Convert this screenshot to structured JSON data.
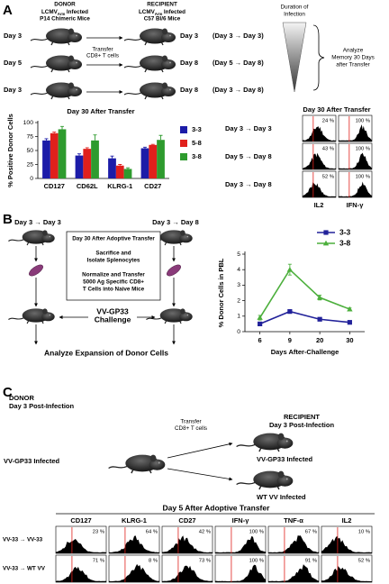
{
  "panel_a": {
    "label": "A",
    "donor": {
      "title": "DONOR",
      "infection": {
        "virus": "LCMV",
        "strain": "Arm",
        "suffix": "Infected"
      },
      "mice": "P14 Chimeric Mice"
    },
    "recipient": {
      "title": "RECIPIENT",
      "infection": {
        "virus": "LCMV",
        "strain": "Arm",
        "suffix": "Infected"
      },
      "mice": "C57 Bl/6 Mice"
    },
    "transfer": [
      "Transfer",
      "CD8+ T cells"
    ],
    "rows": [
      {
        "donor": "Day 3",
        "recipient": "Day 3",
        "course": "(Day 3 → Day 3)"
      },
      {
        "donor": "Day 5",
        "recipient": "Day 8",
        "course": "(Day 5 → Day 8)"
      },
      {
        "donor": "Day 3",
        "recipient": "Day 8",
        "course": "(Day 3 → Day 8)"
      }
    ],
    "duration": [
      "Duration of",
      "Infection"
    ],
    "analysis": [
      "Analyze",
      "Memory 30 Days",
      "after Transfer"
    ],
    "flow": {
      "title": "Day 30 After Transfer",
      "columns": [
        "IL2",
        "IFN-γ"
      ],
      "rows": [
        {
          "label": "Day 3 → Day 3",
          "percents": [
            "24 %",
            "100 %"
          ]
        },
        {
          "label": "Day 5 → Day 8",
          "percents": [
            "43 %",
            "100 %"
          ]
        },
        {
          "label": "Day 3 → Day 8",
          "percents": [
            "52 %",
            "100 %"
          ]
        }
      ]
    }
  },
  "panel_b": {
    "label": "B",
    "groups": [
      "Day 3 → Day 3",
      "Day 3 → Day 8"
    ],
    "box": {
      "title": "Day 30 After Adoptive Transfer",
      "harvest": [
        "Sacrifice and",
        "Isolate Splenocytes"
      ],
      "transfer": [
        "Normalize and Transfer",
        "5000 Ag Specific CD8+",
        "T Cells into Naive Mice"
      ]
    },
    "challenge": [
      "VV-GP33",
      "Challenge"
    ],
    "readout": "Analyze Expansion of Donor Cells"
  },
  "panel_c": {
    "label": "C",
    "donor": {
      "title": "DONOR",
      "timing": "Day 3 Post-Infection",
      "infection": "VV-GP33 Infected"
    },
    "transfer": [
      "Transfer",
      "CD8+ T cells"
    ],
    "recipient": {
      "title": "RECIPIENT",
      "timing": "Day 3 Post-Infection",
      "groups": [
        "VV-GP33 Infected",
        "WT VV Infected"
      ]
    },
    "flow": {
      "title": "Day 5 After Adoptive Transfer",
      "columns": [
        "CD127",
        "KLRG-1",
        "CD27",
        "IFN-γ",
        "TNF-α",
        "IL2"
      ],
      "rows": [
        {
          "label": "VV-33 → VV-33",
          "percents": [
            "23 %",
            "64 %",
            "42 %",
            "100 %",
            "67 %",
            "10 %"
          ]
        },
        {
          "label": "VV-33 → WT VV",
          "percents": [
            "71 %",
            "8 %",
            "73 %",
            "100 %",
            "91 %",
            "52 %"
          ]
        }
      ]
    }
  },
  "chart_data": [
    {
      "type": "bar",
      "title": "Day 30 After Transfer",
      "y_label": "% Positive Donor Cells",
      "categories": [
        "CD127",
        "CD62L",
        "KLRG-1",
        "CD27"
      ],
      "series": [
        {
          "name": "3-3",
          "color": "#1c1ca8",
          "values": [
            68,
            41,
            36,
            54
          ],
          "errors": [
            3,
            3,
            4,
            2
          ]
        },
        {
          "name": "5-8",
          "color": "#e0201c",
          "values": [
            81,
            53,
            23,
            60
          ],
          "errors": [
            2,
            2,
            2,
            1
          ]
        },
        {
          "name": "3-8",
          "color": "#2e9b2e",
          "values": [
            88,
            68,
            17,
            69
          ],
          "errors": [
            5,
            10,
            2,
            8
          ]
        }
      ],
      "ylim": [
        0,
        100
      ],
      "yticks": [
        0,
        25,
        50,
        75,
        100
      ]
    },
    {
      "type": "line",
      "x_label": "Days After-Challenge",
      "y_label": "% Donor Cells in PBL",
      "categories": [
        "6",
        "9",
        "20",
        "30"
      ],
      "series": [
        {
          "name": "3-3",
          "color": "#22229a",
          "marker": "square",
          "values": [
            0.5,
            1.3,
            0.8,
            0.6
          ],
          "errors": [
            0.05,
            0.08,
            0.1,
            0.1
          ]
        },
        {
          "name": "3-8",
          "color": "#4caf3c",
          "marker": "triangle",
          "values": [
            0.9,
            4.0,
            2.2,
            1.45
          ],
          "errors": [
            0.15,
            0.35,
            0.15,
            0.08
          ]
        }
      ],
      "ylim": [
        0,
        5
      ],
      "yticks": [
        0,
        1,
        2,
        3,
        4,
        5
      ]
    }
  ]
}
